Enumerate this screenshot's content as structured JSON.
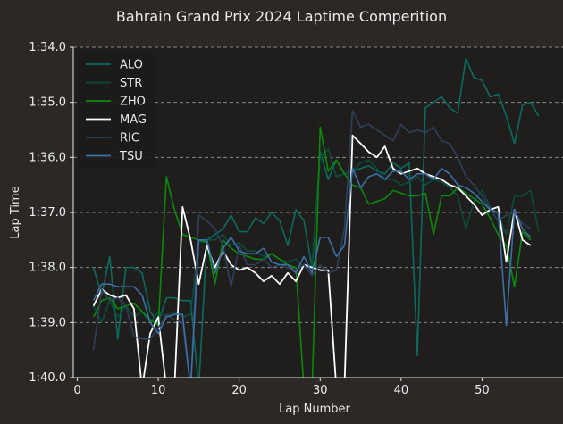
{
  "chart_data": {
    "type": "line",
    "title": "Bahrain Grand Prix 2024 Laptime Comperition",
    "xlabel": "Lap Number",
    "ylabel": "Lap Time",
    "xlim": [
      -0.5,
      60
    ],
    "ylim_seconds": [
      94,
      100
    ],
    "y_inverted": true,
    "x_ticks": [
      0,
      10,
      20,
      30,
      40,
      50
    ],
    "y_ticks": [
      {
        "seconds": 94,
        "label": "1:34.0"
      },
      {
        "seconds": 95,
        "label": "1:35.0"
      },
      {
        "seconds": 96,
        "label": "1:36.0"
      },
      {
        "seconds": 97,
        "label": "1:37.0"
      },
      {
        "seconds": 98,
        "label": "1:38.0"
      },
      {
        "seconds": 99,
        "label": "1:39.0"
      },
      {
        "seconds": 100,
        "label": "1:40.0"
      }
    ],
    "grid": "horizontal dashed",
    "legend_position": "top-left",
    "series": [
      {
        "name": "ALO",
        "color": "#0b6b5e",
        "x": [
          2,
          3,
          4,
          5,
          6,
          7,
          8,
          9,
          10,
          11,
          12,
          13,
          14,
          15,
          16,
          17,
          18,
          19,
          20,
          21,
          22,
          23,
          24,
          25,
          26,
          27,
          28,
          29,
          30,
          31,
          32,
          33,
          34,
          35,
          36,
          37,
          38,
          39,
          40,
          41,
          42,
          43,
          44,
          45,
          46,
          47,
          48,
          49,
          50,
          51,
          52,
          53,
          54,
          55,
          56,
          57
        ],
        "y": [
          98.0,
          98.5,
          97.8,
          99.3,
          98.0,
          98.0,
          98.1,
          98.8,
          99.0,
          98.55,
          98.55,
          98.6,
          98.6,
          100.2,
          97.5,
          97.4,
          97.3,
          97.05,
          97.35,
          97.35,
          97.1,
          97.2,
          97.0,
          97.15,
          97.6,
          96.95,
          97.15,
          98.0,
          95.9,
          96.4,
          96.05,
          96.3,
          96.25,
          96.2,
          96.15,
          96.25,
          96.3,
          96.1,
          96.2,
          96.1,
          99.6,
          95.1,
          95.0,
          94.9,
          95.1,
          95.2,
          94.2,
          94.55,
          94.6,
          94.9,
          94.85,
          95.25,
          95.75,
          95.05,
          95.0,
          95.25
        ]
      },
      {
        "name": "STR",
        "color": "#0a4d3c",
        "x": [
          2,
          3,
          4,
          5,
          6,
          7,
          8,
          9,
          10,
          11,
          12,
          13,
          14,
          15,
          16,
          17,
          18,
          19,
          20,
          21,
          22,
          23,
          24,
          25,
          26,
          27,
          28,
          29,
          30,
          31,
          32,
          33,
          34,
          35,
          36,
          37,
          38,
          39,
          40,
          41,
          42,
          43,
          44,
          45,
          46,
          47,
          48,
          49,
          50,
          51,
          52,
          53,
          54,
          55,
          56,
          57
        ],
        "y": [
          98.7,
          99.0,
          98.6,
          98.9,
          98.7,
          98.9,
          98.8,
          99.0,
          98.8,
          98.9,
          98.8,
          98.9,
          98.85,
          97.55,
          97.5,
          97.5,
          97.4,
          97.6,
          97.55,
          97.7,
          97.7,
          97.8,
          97.75,
          97.85,
          97.9,
          97.85,
          98.0,
          97.95,
          96.0,
          95.85,
          96.35,
          96.3,
          96.25,
          96.1,
          96.05,
          96.2,
          96.4,
          96.4,
          96.5,
          96.45,
          96.35,
          96.5,
          96.4,
          96.45,
          96.55,
          96.7,
          97.3,
          96.8,
          96.6,
          96.9,
          97.05,
          97.4,
          96.7,
          96.7,
          96.6,
          97.35
        ]
      },
      {
        "name": "ZHO",
        "color": "#0a8a0a",
        "x": [
          2,
          3,
          4,
          5,
          6,
          7,
          8,
          9,
          10,
          11,
          12,
          13,
          14,
          15,
          16,
          17,
          18,
          19,
          20,
          21,
          22,
          23,
          24,
          25,
          26,
          27,
          28,
          29,
          30,
          31,
          32,
          33,
          34,
          35,
          36,
          37,
          38,
          39,
          40,
          41,
          42,
          43,
          44,
          45,
          46,
          47,
          48,
          49,
          50,
          51,
          52,
          53,
          54,
          55,
          56
        ],
        "y": [
          98.9,
          98.6,
          98.55,
          98.75,
          98.7,
          98.65,
          98.8,
          98.95,
          99.05,
          96.35,
          96.95,
          97.4,
          97.45,
          97.5,
          97.55,
          98.3,
          97.5,
          97.65,
          97.75,
          97.8,
          97.85,
          97.85,
          97.75,
          97.85,
          97.95,
          98.0,
          100.2,
          100.2,
          95.45,
          96.25,
          96.05,
          96.3,
          96.5,
          96.55,
          96.85,
          96.8,
          96.75,
          96.6,
          96.65,
          96.7,
          96.7,
          96.65,
          97.4,
          96.7,
          96.7,
          96.55,
          96.65,
          96.75,
          96.85,
          97.1,
          97.4,
          97.6,
          98.35,
          97.35,
          97.5
        ]
      },
      {
        "name": "MAG",
        "color": "#ffffff",
        "x": [
          2,
          3,
          4,
          5,
          6,
          7,
          8,
          9,
          10,
          11,
          12,
          13,
          14,
          15,
          16,
          17,
          18,
          19,
          20,
          21,
          22,
          23,
          24,
          25,
          26,
          27,
          28,
          29,
          30,
          31,
          32,
          33,
          34,
          35,
          36,
          37,
          38,
          39,
          40,
          41,
          42,
          43,
          44,
          45,
          46,
          47,
          48,
          49,
          50,
          51,
          52,
          53,
          54,
          55,
          56
        ],
        "y": [
          98.7,
          98.4,
          98.5,
          98.55,
          98.5,
          98.75,
          100.2,
          99.2,
          98.9,
          100.2,
          100.2,
          96.9,
          97.5,
          98.3,
          97.6,
          98.0,
          97.7,
          97.95,
          98.05,
          98.0,
          98.1,
          98.25,
          98.15,
          98.3,
          98.1,
          98.25,
          97.95,
          98.0,
          98.05,
          98.05,
          100.2,
          100.2,
          95.6,
          95.75,
          95.9,
          96.0,
          95.8,
          96.2,
          96.3,
          96.25,
          96.2,
          96.3,
          96.35,
          96.4,
          96.5,
          96.55,
          96.7,
          96.85,
          97.05,
          96.95,
          96.9,
          97.9,
          96.95,
          97.5,
          97.6
        ]
      },
      {
        "name": "RIC",
        "color": "#2f3f5c",
        "x": [
          2,
          3,
          4,
          5,
          6,
          7,
          8,
          9,
          10,
          11,
          12,
          13,
          14,
          15,
          16,
          17,
          18,
          19,
          20,
          21,
          22,
          23,
          24,
          25,
          26,
          27,
          28,
          29,
          30,
          31,
          32,
          33,
          34,
          35,
          36,
          37,
          38,
          39,
          40,
          41,
          42,
          43,
          44,
          45,
          46,
          47,
          48,
          49,
          50,
          51,
          52,
          53,
          54,
          55,
          56
        ],
        "y": [
          99.5,
          98.4,
          98.6,
          98.55,
          98.7,
          99.25,
          99.3,
          99.3,
          99.1,
          98.85,
          98.95,
          99.0,
          100.2,
          97.05,
          97.15,
          97.3,
          97.6,
          98.35,
          97.6,
          97.95,
          97.95,
          97.85,
          98.0,
          97.95,
          98.0,
          98.05,
          97.95,
          98.15,
          97.95,
          98.1,
          98.05,
          97.3,
          95.15,
          95.45,
          95.4,
          95.5,
          95.6,
          95.7,
          95.4,
          95.55,
          95.5,
          95.55,
          95.45,
          95.7,
          95.75,
          96.0,
          96.35,
          96.5,
          96.7,
          96.95,
          97.15,
          97.05,
          97.0,
          97.2,
          97.3
        ]
      },
      {
        "name": "TSU",
        "color": "#3d6fa8",
        "x": [
          2,
          3,
          4,
          5,
          6,
          7,
          8,
          9,
          10,
          11,
          12,
          13,
          14,
          15,
          16,
          17,
          18,
          19,
          20,
          21,
          22,
          23,
          24,
          25,
          26,
          27,
          28,
          29,
          30,
          31,
          32,
          33,
          34,
          35,
          36,
          37,
          38,
          39,
          40,
          41,
          42,
          43,
          44,
          45,
          46,
          47,
          48,
          49,
          50,
          51,
          52,
          53,
          54,
          55,
          56
        ],
        "y": [
          98.6,
          98.3,
          98.3,
          98.35,
          98.35,
          98.35,
          98.5,
          99.0,
          99.2,
          98.9,
          98.85,
          98.85,
          100.2,
          97.5,
          97.5,
          98.1,
          97.65,
          97.45,
          97.7,
          97.75,
          97.75,
          97.65,
          97.9,
          97.95,
          97.95,
          98.1,
          97.8,
          98.1,
          97.45,
          97.45,
          97.8,
          97.6,
          96.2,
          96.55,
          96.35,
          96.3,
          96.4,
          96.25,
          96.25,
          96.4,
          96.3,
          96.3,
          96.4,
          96.2,
          96.3,
          96.5,
          96.55,
          96.65,
          96.8,
          96.95,
          97.0,
          99.05,
          96.95,
          97.3,
          97.45
        ]
      }
    ]
  }
}
